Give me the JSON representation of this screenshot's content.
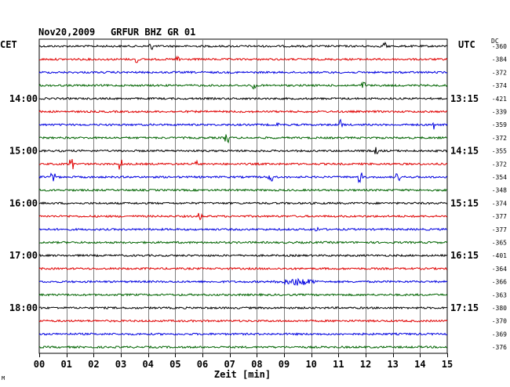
{
  "header": {
    "date": "Nov20,2009",
    "station": "GRFUR BHZ GR 01",
    "left_zone": "CET",
    "right_zone": "UTC",
    "dc_label": "DC"
  },
  "footer": {
    "corner_mark": "M"
  },
  "chart_data": {
    "type": "line",
    "xlabel": "Zeit [min]",
    "x_ticks": [
      "00",
      "01",
      "02",
      "03",
      "04",
      "05",
      "06",
      "07",
      "08",
      "09",
      "10",
      "11",
      "12",
      "13",
      "14",
      "15"
    ],
    "xlim": [
      0,
      15
    ],
    "trace_minutes": 15,
    "grid": true,
    "colors": [
      "#000000",
      "#e00000",
      "#0000e0",
      "#006400"
    ],
    "left_hour_labels": [
      {
        "label": "14:00",
        "trace": 4
      },
      {
        "label": "15:00",
        "trace": 8
      },
      {
        "label": "16:00",
        "trace": 12
      },
      {
        "label": "17:00",
        "trace": 16
      },
      {
        "label": "18:00",
        "trace": 20
      }
    ],
    "right_hour_labels": [
      {
        "label": "13:15",
        "trace": 4
      },
      {
        "label": "14:15",
        "trace": 8
      },
      {
        "label": "15:15",
        "trace": 12
      },
      {
        "label": "16:15",
        "trace": 16
      },
      {
        "label": "17:15",
        "trace": 20
      }
    ],
    "dc_offsets": [
      -360,
      -384,
      -372,
      -374,
      -421,
      -339,
      -359,
      -372,
      -355,
      -372,
      -354,
      -348,
      -374,
      -377,
      -377,
      -365,
      -401,
      -364,
      -366,
      -363,
      -380,
      -370,
      -369,
      -376
    ],
    "events": [
      {
        "trace": 0,
        "minute": 4.1,
        "amp": 6
      },
      {
        "trace": 0,
        "minute": 12.7,
        "amp": 5
      },
      {
        "trace": 1,
        "minute": 3.6,
        "amp": 6
      },
      {
        "trace": 1,
        "minute": 5.1,
        "amp": 4
      },
      {
        "trace": 3,
        "minute": 7.9,
        "amp": 5
      },
      {
        "trace": 3,
        "minute": 11.9,
        "amp": 5
      },
      {
        "trace": 6,
        "minute": 8.8,
        "amp": 4
      },
      {
        "trace": 6,
        "minute": 11.1,
        "amp": 6
      },
      {
        "trace": 6,
        "minute": 14.5,
        "amp": 6
      },
      {
        "trace": 7,
        "minute": 6.9,
        "amp": 7
      },
      {
        "trace": 8,
        "minute": 12.4,
        "amp": 5
      },
      {
        "trace": 9,
        "minute": 1.2,
        "amp": 6
      },
      {
        "trace": 9,
        "minute": 3.0,
        "amp": 7
      },
      {
        "trace": 9,
        "minute": 5.8,
        "amp": 5
      },
      {
        "trace": 10,
        "minute": 0.5,
        "amp": 6
      },
      {
        "trace": 10,
        "minute": 8.5,
        "amp": 6
      },
      {
        "trace": 10,
        "minute": 11.8,
        "amp": 8
      },
      {
        "trace": 10,
        "minute": 13.2,
        "amp": 4
      },
      {
        "trace": 13,
        "minute": 5.9,
        "amp": 4
      },
      {
        "trace": 14,
        "minute": 10.2,
        "amp": 3
      },
      {
        "trace": 18,
        "minute": 9.5,
        "amp": 6
      }
    ]
  }
}
